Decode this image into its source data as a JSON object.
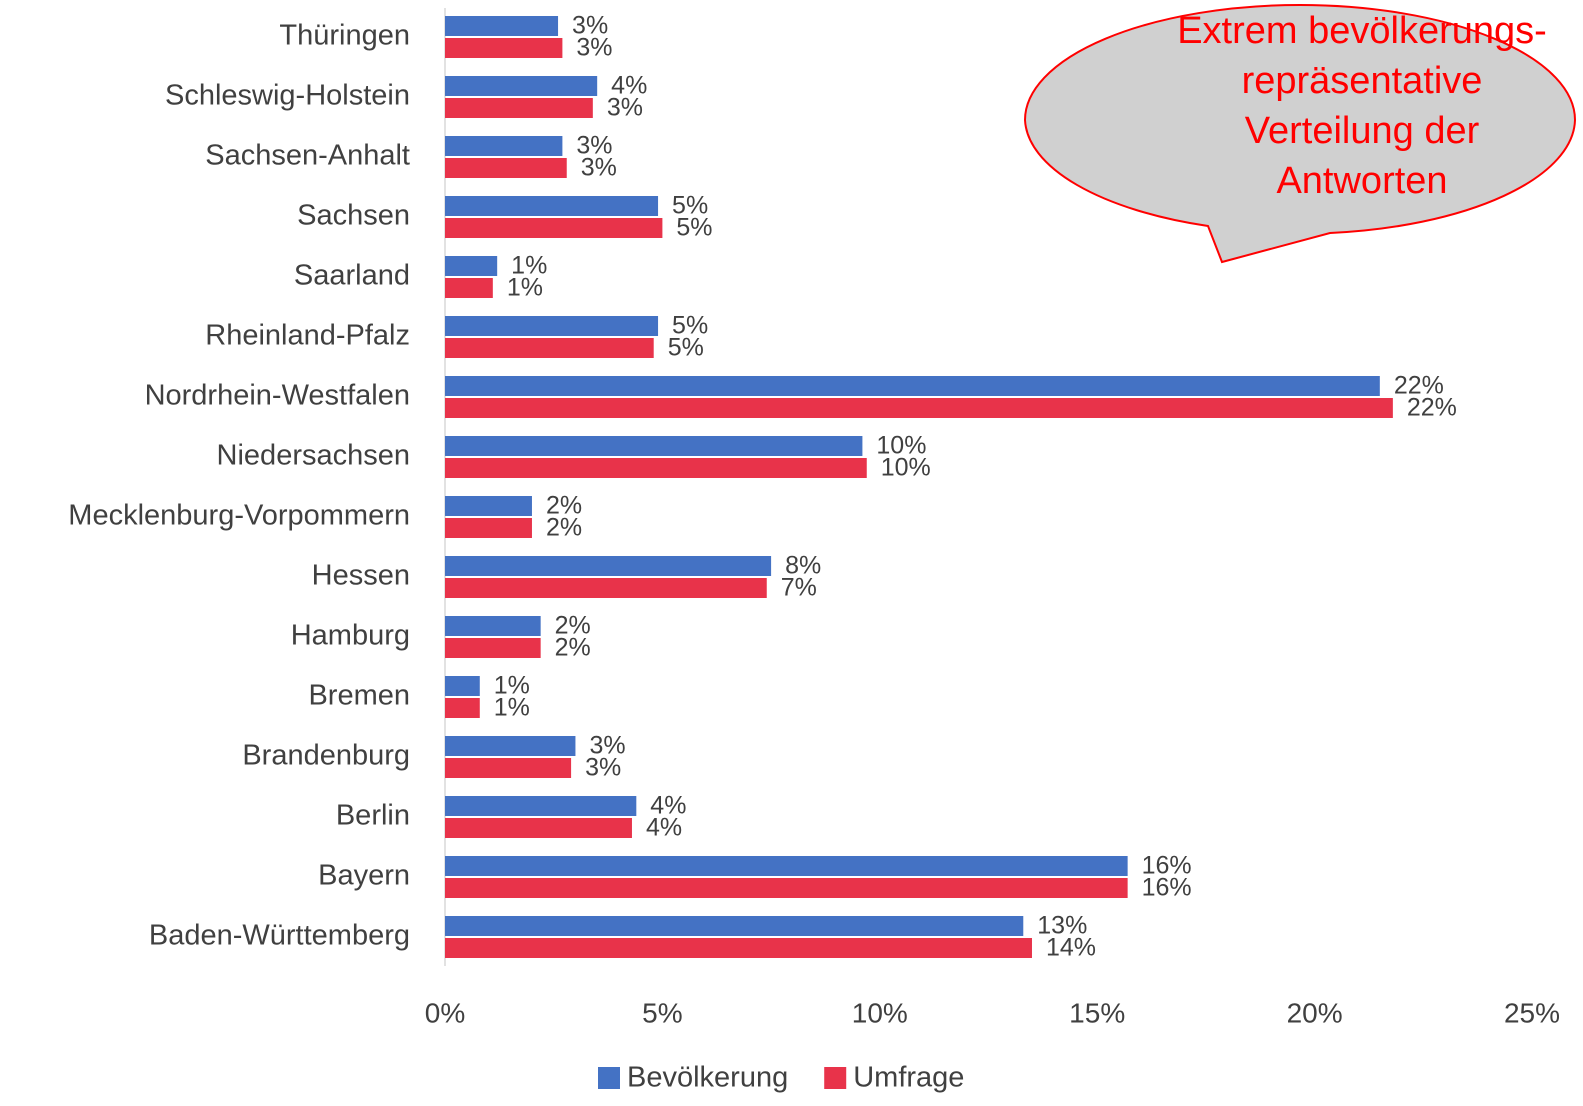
{
  "chart_data": {
    "type": "hbar",
    "categories": [
      "Thüringen",
      "Schleswig-Holstein",
      "Sachsen-Anhalt",
      "Sachsen",
      "Saarland",
      "Rheinland-Pfalz",
      "Nordrhein-Westfalen",
      "Niedersachsen",
      "Mecklenburg-Vorpommern",
      "Hessen",
      "Hamburg",
      "Bremen",
      "Brandenburg",
      "Berlin",
      "Bayern",
      "Baden-Württemberg"
    ],
    "series": [
      {
        "name": "Bevölkerung",
        "color": "#4472c4",
        "values": [
          2.6,
          3.5,
          2.7,
          4.9,
          1.2,
          4.9,
          21.5,
          9.6,
          2.0,
          7.5,
          2.2,
          0.8,
          3.0,
          4.4,
          15.7,
          13.3
        ],
        "value_labels": [
          "3%",
          "4%",
          "3%",
          "5%",
          "1%",
          "5%",
          "22%",
          "10%",
          "2%",
          "8%",
          "2%",
          "1%",
          "3%",
          "4%",
          "16%",
          "13%"
        ]
      },
      {
        "name": "Umfrage",
        "color": "#e8334a",
        "values": [
          2.7,
          3.4,
          2.8,
          5.0,
          1.1,
          4.8,
          21.8,
          9.7,
          2.0,
          7.4,
          2.2,
          0.8,
          2.9,
          4.3,
          15.7,
          13.5
        ],
        "value_labels": [
          "3%",
          "3%",
          "3%",
          "5%",
          "1%",
          "5%",
          "22%",
          "10%",
          "2%",
          "7%",
          "2%",
          "1%",
          "3%",
          "4%",
          "16%",
          "14%"
        ]
      }
    ],
    "xlim": [
      0,
      25
    ],
    "xticks": [
      {
        "value": 0,
        "label": "0%"
      },
      {
        "value": 5,
        "label": "5%"
      },
      {
        "value": 10,
        "label": "10%"
      },
      {
        "value": 15,
        "label": "15%"
      },
      {
        "value": 20,
        "label": "20%"
      },
      {
        "value": 25,
        "label": "25%"
      }
    ],
    "legend": "bottom",
    "annotation": [
      "Extrem bevölkerungs-",
      "repräsentative",
      "Verteilung der",
      "Antworten"
    ]
  }
}
